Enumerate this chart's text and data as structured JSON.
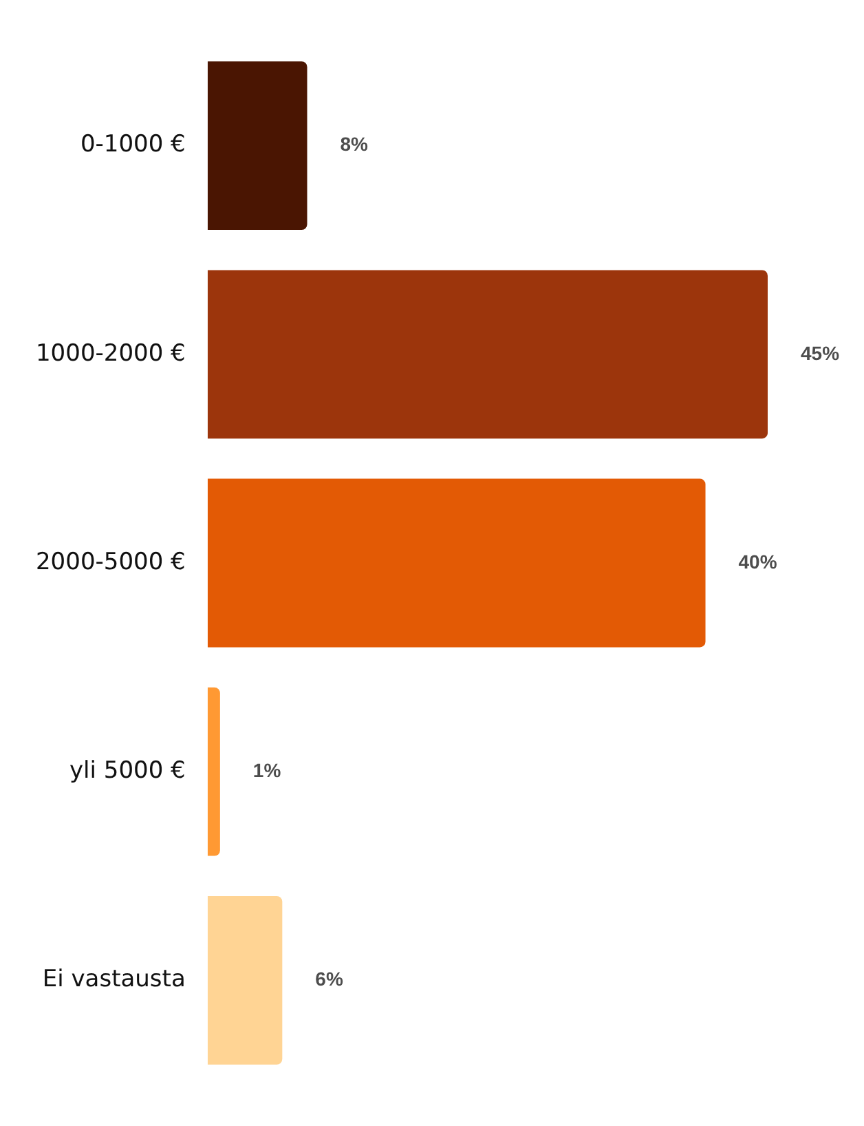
{
  "chart_data": {
    "type": "bar",
    "orientation": "horizontal",
    "categories": [
      "0-1000 €",
      "1000-2000 €",
      "2000-5000 €",
      "yli 5000 €",
      "Ei vastausta"
    ],
    "values": [
      8,
      45,
      40,
      1,
      6
    ],
    "colors": [
      "#4a1502",
      "#9c350c",
      "#e35a05",
      "#ff9933",
      "#ffd494"
    ],
    "value_labels": [
      "8%",
      "45%",
      "40%",
      "1%",
      "6%"
    ],
    "legend": false,
    "grid": false
  }
}
